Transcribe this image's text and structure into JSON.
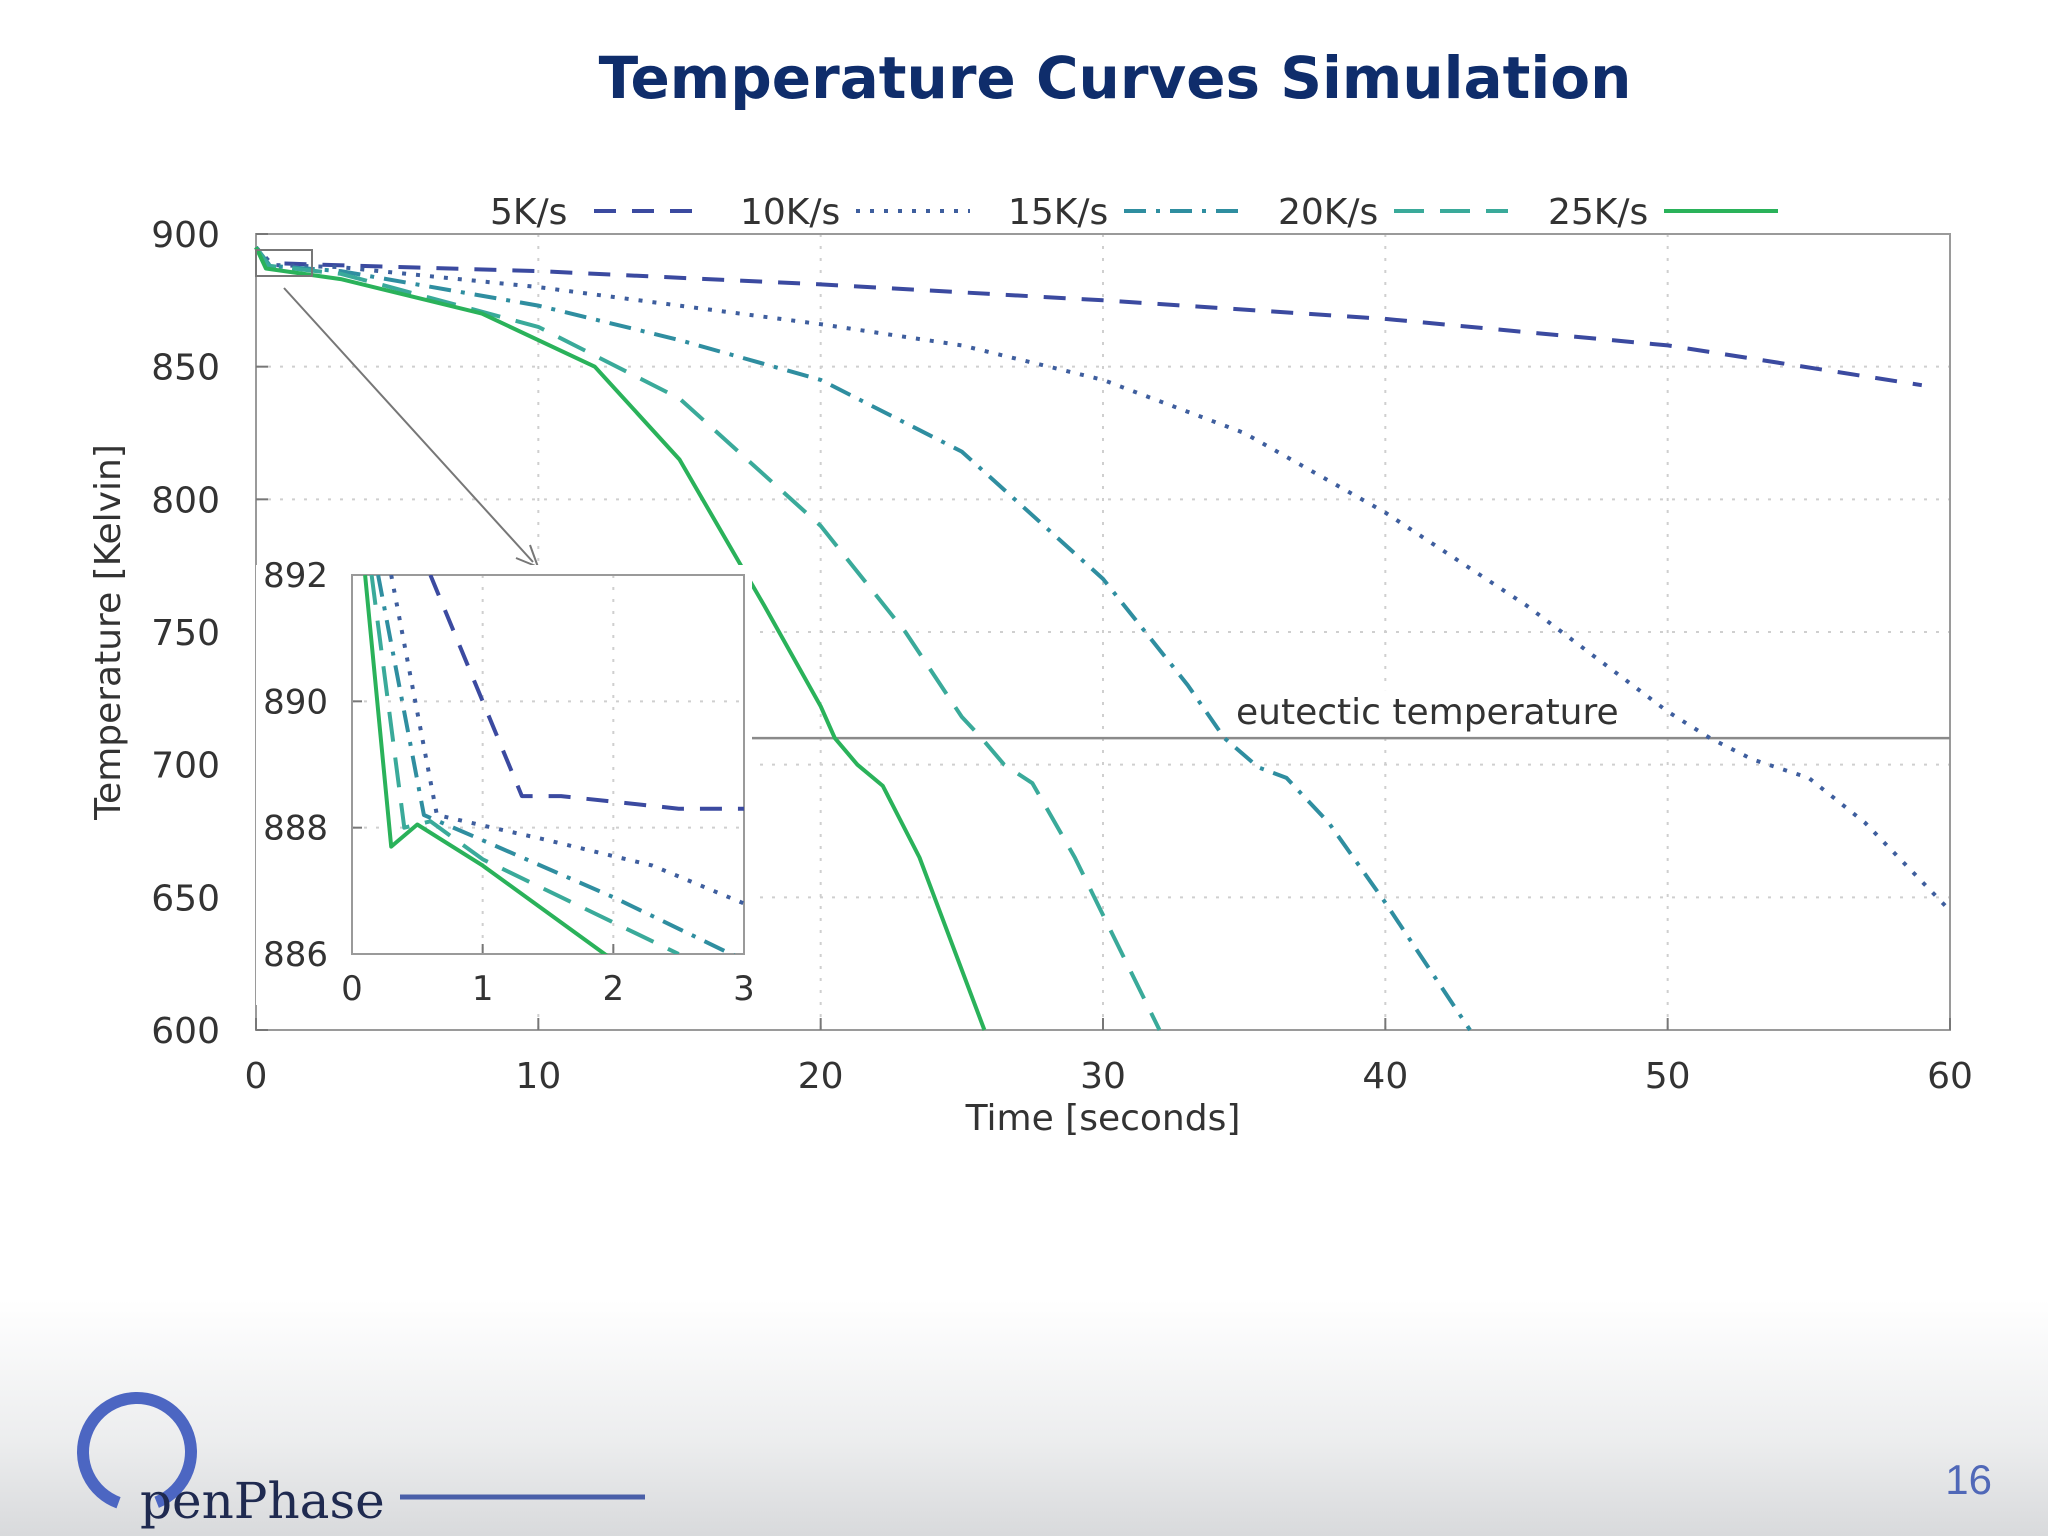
{
  "slide": {
    "title": "Temperature Curves Simulation",
    "page_number": "16",
    "logo_text": "penPhase"
  },
  "chart_data": [
    {
      "type": "line",
      "xlabel": "Time [seconds]",
      "ylabel": "Temperature [Kelvin]",
      "xlim": [
        0,
        60
      ],
      "ylim": [
        600,
        900
      ],
      "xticks": [
        "0",
        "10",
        "20",
        "30",
        "40",
        "50",
        "60"
      ],
      "yticks": [
        "600",
        "650",
        "700",
        "750",
        "800",
        "850",
        "900"
      ],
      "grid": true,
      "legend_position": "top",
      "annotation": {
        "text": "eutectic temperature",
        "y": 710
      },
      "series": [
        {
          "name": "5K/s",
          "style": "dashed",
          "color": "#3b4aa0",
          "points": [
            [
              0,
              895
            ],
            [
              0.3,
              889
            ],
            [
              1.3,
              888.8
            ],
            [
              2,
              888.5
            ],
            [
              10,
              886
            ],
            [
              20,
              881
            ],
            [
              30,
              875
            ],
            [
              40,
              868
            ],
            [
              50,
              858
            ],
            [
              59,
              843
            ]
          ]
        },
        {
          "name": "10K/s",
          "style": "dotted",
          "color": "#3e5e9e",
          "points": [
            [
              0,
              895
            ],
            [
              0.6,
              888.3
            ],
            [
              3,
              887.5
            ],
            [
              10,
              880
            ],
            [
              20,
              866
            ],
            [
              25,
              858
            ],
            [
              30,
              845
            ],
            [
              35,
              825
            ],
            [
              40,
              795
            ],
            [
              45,
              760
            ],
            [
              50,
              720
            ],
            [
              51.5,
              710
            ],
            [
              53,
              702
            ],
            [
              55,
              695
            ],
            [
              57,
              678
            ],
            [
              60,
              645
            ]
          ]
        },
        {
          "name": "15K/s",
          "style": "dashdot",
          "color": "#2f8ea0",
          "points": [
            [
              0,
              895
            ],
            [
              0.5,
              888
            ],
            [
              3,
              886
            ],
            [
              10,
              873
            ],
            [
              15,
              860
            ],
            [
              20,
              845
            ],
            [
              25,
              818
            ],
            [
              30,
              770
            ],
            [
              33,
              730
            ],
            [
              34.3,
              710
            ],
            [
              35.5,
              699
            ],
            [
              36.5,
              695
            ],
            [
              38,
              678
            ],
            [
              40,
              648
            ],
            [
              43,
              600
            ]
          ]
        },
        {
          "name": "20K/s",
          "style": "longdash",
          "color": "#3aaa9a",
          "points": [
            [
              0,
              895
            ],
            [
              0.45,
              888
            ],
            [
              3,
              885
            ],
            [
              10,
              865
            ],
            [
              15,
              838
            ],
            [
              20,
              790
            ],
            [
              23,
              750
            ],
            [
              25,
              718
            ],
            [
              25.7,
              710
            ],
            [
              26.5,
              700
            ],
            [
              27.5,
              693
            ],
            [
              29,
              665
            ],
            [
              32,
              600
            ]
          ]
        },
        {
          "name": "25K/s",
          "style": "solid",
          "color": "#2ab25a",
          "points": [
            [
              0,
              895
            ],
            [
              0.35,
              887
            ],
            [
              3,
              883
            ],
            [
              8,
              870
            ],
            [
              12,
              850
            ],
            [
              15,
              815
            ],
            [
              18,
              760
            ],
            [
              20,
              722
            ],
            [
              20.5,
              710
            ],
            [
              21.3,
              700
            ],
            [
              22.2,
              692
            ],
            [
              23.5,
              665
            ],
            [
              25.8,
              600
            ]
          ]
        }
      ]
    },
    {
      "type": "line",
      "title": "",
      "xlim": [
        0,
        3
      ],
      "ylim": [
        886,
        892
      ],
      "xticks": [
        "0",
        "1",
        "2",
        "3"
      ],
      "yticks": [
        "886",
        "888",
        "890",
        "892"
      ],
      "grid": true,
      "series": [
        {
          "name": "5K/s",
          "points": [
            [
              0.6,
              892
            ],
            [
              1.3,
              888.5
            ],
            [
              1.6,
              888.5
            ],
            [
              2.5,
              888.3
            ],
            [
              3,
              888.3
            ]
          ]
        },
        {
          "name": "10K/s",
          "points": [
            [
              0.3,
              892
            ],
            [
              0.65,
              888.2
            ],
            [
              1.5,
              887.8
            ],
            [
              2.3,
              887.4
            ],
            [
              3,
              886.8
            ]
          ]
        },
        {
          "name": "15K/s",
          "points": [
            [
              0.2,
              892
            ],
            [
              0.55,
              888.2
            ],
            [
              1,
              887.8
            ],
            [
              2,
              886.9
            ],
            [
              3,
              885.9
            ]
          ]
        },
        {
          "name": "20K/s",
          "points": [
            [
              0.15,
              892
            ],
            [
              0.4,
              888
            ],
            [
              0.6,
              888.1
            ],
            [
              1,
              887.5
            ],
            [
              2.5,
              886
            ]
          ]
        },
        {
          "name": "25K/s",
          "points": [
            [
              0.1,
              892
            ],
            [
              0.3,
              887.7
            ],
            [
              0.5,
              888.05
            ],
            [
              1,
              887.4
            ],
            [
              2,
              885.9
            ]
          ]
        }
      ]
    }
  ]
}
